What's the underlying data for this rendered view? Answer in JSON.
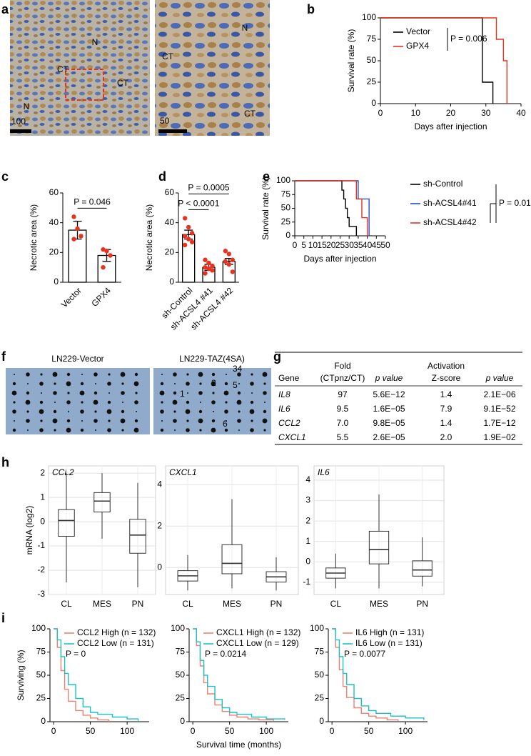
{
  "panel_labels": [
    "a",
    "b",
    "c",
    "d",
    "e",
    "f",
    "g",
    "h",
    "i"
  ],
  "micrographs": {
    "left_labels": [
      "N",
      "CT",
      "CT",
      "N"
    ],
    "left_scale": 100,
    "right_labels": [
      "N",
      "CT",
      "CT"
    ],
    "right_scale": 50
  },
  "blots": {
    "titles": [
      "LN229-Vector",
      "LN229-TAZ(4SA)"
    ],
    "spot_labels": [
      "1",
      "2",
      "34",
      "5",
      "6"
    ]
  },
  "table": {
    "header_top": [
      "Fold",
      "Activation"
    ],
    "header": [
      "Gene",
      "(CTpnz/CT)",
      "p value",
      "Z-score",
      "p value"
    ],
    "rows": [
      [
        "IL8",
        "97",
        "5.6E−12",
        "1.4",
        "2.1E−06"
      ],
      [
        "IL6",
        "9.5",
        "1.6E−05",
        "7.9",
        "9.1E−52"
      ],
      [
        "CCL2",
        "7.0",
        "9.8E−05",
        "1.4",
        "1.7E−12"
      ],
      [
        "CXCL1",
        "5.5",
        "2.6E−05",
        "2.0",
        "1.9E−02"
      ]
    ]
  },
  "chart_data": [
    {
      "type": "survival",
      "xlabel": "Days after injection",
      "ylabel": "Survival rate (%)",
      "legend": "upper left",
      "xlim": [
        0,
        40
      ],
      "xticks": [
        0,
        10,
        20,
        30,
        40
      ],
      "ylim": [
        0,
        100
      ],
      "yticks": [
        0,
        25,
        50,
        75,
        100
      ],
      "series": [
        {
          "name": "Vector",
          "color": "#000000",
          "x": [
            0,
            29,
            32
          ],
          "values": [
            100,
            25,
            0
          ]
        },
        {
          "name": "GPX4",
          "color": "#e8321e",
          "x": [
            0,
            33,
            35,
            36
          ],
          "values": [
            100,
            75,
            50,
            0
          ]
        }
      ],
      "annotation": "P = 0.006"
    },
    {
      "type": "bar",
      "ylabel": "Necrotic area (%)",
      "categories": [
        "Vector",
        "GPX4"
      ],
      "values": [
        35,
        18
      ],
      "errors": [
        6,
        4
      ],
      "points": [
        [
          44,
          36,
          31,
          29
        ],
        [
          22,
          21,
          18,
          10
        ]
      ],
      "color": "#e8321e",
      "ylim": [
        0,
        60
      ],
      "yticks": [
        0,
        20,
        40,
        60
      ],
      "annotations": [
        "P = 0.046"
      ]
    },
    {
      "type": "bar",
      "ylabel": "Necrotic area (%)",
      "categories": [
        "sh-Control",
        "sh-ACSL4 #41",
        "sh-ACSL4 #42"
      ],
      "values": [
        32,
        10,
        14
      ],
      "errors": [
        3,
        2,
        2
      ],
      "points": [
        [
          43,
          37,
          33,
          31,
          29,
          27,
          25
        ],
        [
          15,
          13,
          11,
          10,
          9,
          8,
          6
        ],
        [
          21,
          19,
          15,
          14,
          12,
          7
        ]
      ],
      "color": "#e8321e",
      "ylim": [
        0,
        60
      ],
      "yticks": [
        0,
        20,
        40,
        60
      ],
      "annotations": [
        "P < 0.0001",
        "P = 0.0005"
      ]
    },
    {
      "type": "survival",
      "xlabel": "Days after injection",
      "ylabel": "Survival rate (%)",
      "legend": "right",
      "xlim": [
        0,
        50
      ],
      "xticks": [
        0,
        5,
        10,
        15,
        20,
        25,
        30,
        35,
        40,
        45,
        50
      ],
      "ylim": [
        0,
        100
      ],
      "yticks": [
        0,
        25,
        50,
        75,
        100
      ],
      "series": [
        {
          "name": "sh-Control",
          "color": "#000000",
          "x": [
            0,
            26,
            27,
            28,
            29,
            30,
            34
          ],
          "values": [
            100,
            83,
            67,
            50,
            33,
            17,
            0
          ]
        },
        {
          "name": "sh-ACSL4#41",
          "color": "#1f4fd6",
          "x": [
            0,
            35,
            41
          ],
          "values": [
            100,
            67,
            0
          ]
        },
        {
          "name": "sh-ACSL4#42",
          "color": "#e8321e",
          "x": [
            0,
            34,
            37,
            40
          ],
          "values": [
            100,
            67,
            33,
            0
          ]
        }
      ],
      "annotation": "P = 0.01"
    },
    {
      "type": "box",
      "title": "CCL2",
      "ylabel": "mRNA (log2)",
      "categories": [
        "CL",
        "MES",
        "PN"
      ],
      "ylim": [
        -3,
        2.3
      ],
      "yticks": [
        -3,
        -2,
        -1,
        0,
        1,
        2
      ],
      "boxes": [
        {
          "low": -2.5,
          "q1": -0.6,
          "median": 0.05,
          "q3": 0.5,
          "high": 2.0
        },
        {
          "low": -0.7,
          "q1": 0.4,
          "median": 0.85,
          "q3": 1.2,
          "high": 2.0
        },
        {
          "low": -2.7,
          "q1": -1.3,
          "median": -0.55,
          "q3": 0.1,
          "high": 1.6
        }
      ]
    },
    {
      "type": "box",
      "title": "CXCL1",
      "categories": [
        "CL",
        "MES",
        "PN"
      ],
      "ylim": [
        -1.3,
        4.9
      ],
      "yticks": [
        0,
        2,
        4
      ],
      "boxes": [
        {
          "low": -1.1,
          "q1": -0.65,
          "median": -0.4,
          "q3": -0.15,
          "high": 0.6
        },
        {
          "low": -1.0,
          "q1": -0.3,
          "median": 0.2,
          "q3": 1.1,
          "high": 3.3
        },
        {
          "low": -1.1,
          "q1": -0.7,
          "median": -0.45,
          "q3": -0.2,
          "high": 0.5
        }
      ]
    },
    {
      "type": "box",
      "title": "IL6",
      "categories": [
        "CL",
        "MES",
        "PN"
      ],
      "ylim": [
        -1.6,
        4.7
      ],
      "yticks": [
        -1,
        0,
        1,
        2,
        3,
        4
      ],
      "boxes": [
        {
          "low": -1.3,
          "q1": -0.8,
          "median": -0.55,
          "q3": -0.3,
          "high": 0.4
        },
        {
          "low": -1.3,
          "q1": -0.1,
          "median": 0.6,
          "q3": 1.5,
          "high": 3.3
        },
        {
          "low": -1.2,
          "q1": -0.7,
          "median": -0.4,
          "q3": 0.05,
          "high": 1.2
        }
      ]
    },
    {
      "type": "survival",
      "ylabel": "Surviving (%)",
      "legend": "upper right",
      "xlim": [
        -5,
        130
      ],
      "xticks": [
        0,
        50,
        100
      ],
      "ylim": [
        0,
        100
      ],
      "yticks": [
        0,
        25,
        50,
        75,
        100
      ],
      "series": [
        {
          "name": "CCL2 High (n = 132)",
          "color": "#f08070",
          "x": [
            0,
            5,
            10,
            15,
            20,
            30,
            40,
            50,
            60,
            75
          ],
          "values": [
            100,
            80,
            55,
            35,
            22,
            12,
            7,
            4,
            2,
            0
          ]
        },
        {
          "name": "CCL2 Low (n = 131)",
          "color": "#19c3c3",
          "x": [
            0,
            5,
            10,
            15,
            20,
            30,
            40,
            50,
            60,
            80,
            100,
            115
          ],
          "values": [
            100,
            88,
            70,
            52,
            40,
            25,
            16,
            10,
            8,
            5,
            3,
            1
          ]
        }
      ],
      "annotation": "P = 0"
    },
    {
      "type": "survival",
      "xlabel": "Survival time (months)",
      "legend": "upper right",
      "xlim": [
        -5,
        130
      ],
      "xticks": [
        0,
        50,
        100
      ],
      "ylim": [
        0,
        100
      ],
      "yticks": [
        0,
        25,
        50,
        75,
        100
      ],
      "series": [
        {
          "name": "CXCL1 High (n = 132)",
          "color": "#f08070",
          "x": [
            0,
            5,
            10,
            15,
            20,
            30,
            40,
            50,
            60,
            75,
            90,
            110
          ],
          "values": [
            100,
            82,
            60,
            42,
            30,
            18,
            11,
            7,
            5,
            3,
            2,
            1
          ]
        },
        {
          "name": "CXCL1 Low (n = 129)",
          "color": "#19c3c3",
          "x": [
            0,
            5,
            10,
            15,
            20,
            30,
            40,
            50,
            60,
            80,
            100,
            125
          ],
          "values": [
            100,
            86,
            66,
            50,
            38,
            24,
            15,
            10,
            8,
            5,
            3,
            2
          ]
        }
      ],
      "annotation": "P = 0.0214"
    },
    {
      "type": "survival",
      "legend": "upper right",
      "xlim": [
        -5,
        130
      ],
      "xticks": [
        0,
        50,
        100
      ],
      "ylim": [
        0,
        100
      ],
      "yticks": [
        0,
        25,
        50,
        75,
        100
      ],
      "series": [
        {
          "name": "IL6 High (n = 131)",
          "color": "#f08070",
          "x": [
            0,
            5,
            10,
            15,
            20,
            30,
            40,
            50,
            60,
            75,
            90
          ],
          "values": [
            100,
            80,
            56,
            38,
            26,
            15,
            9,
            6,
            4,
            2,
            1
          ]
        },
        {
          "name": "IL6 Low (n = 131)",
          "color": "#19c3c3",
          "x": [
            0,
            5,
            10,
            15,
            20,
            30,
            40,
            50,
            60,
            80,
            100,
            125
          ],
          "values": [
            100,
            88,
            70,
            52,
            40,
            25,
            17,
            12,
            9,
            6,
            4,
            2
          ]
        }
      ],
      "annotation": "P = 0.0077"
    }
  ]
}
